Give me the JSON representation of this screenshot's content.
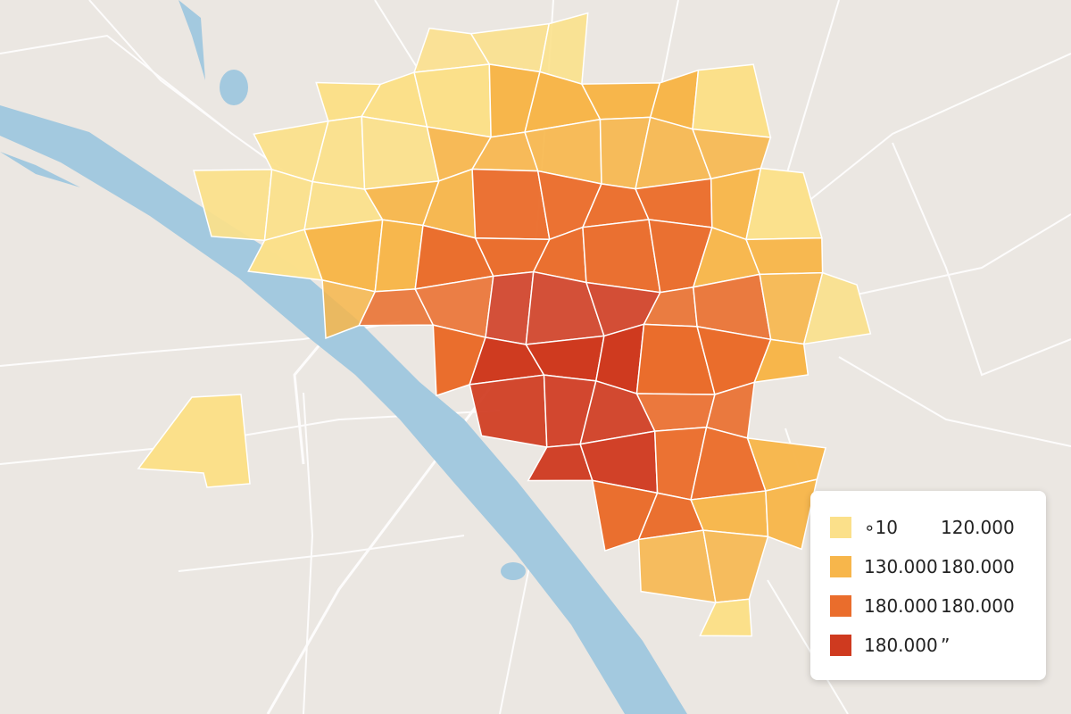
{
  "legend": {
    "items": [
      {
        "color": "#fbe08a",
        "from": "∘10",
        "to": "120.000"
      },
      {
        "color": "#f7b64b",
        "from": "130.000",
        "to": "180.000"
      },
      {
        "color": "#ea6d2c",
        "from": "180.000",
        "to": "180.000"
      },
      {
        "color": "#cf3a1f",
        "from": "180.000",
        "to": "”"
      }
    ]
  }
}
